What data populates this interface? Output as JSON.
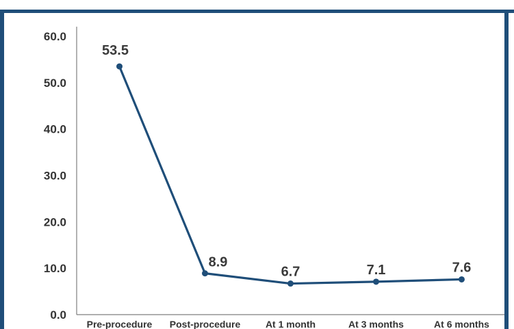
{
  "chart_data": {
    "type": "line",
    "categories": [
      "Pre-procedure",
      "Post-procedure",
      "At 1 month",
      "At 3 months",
      "At 6 months"
    ],
    "series": [
      {
        "values": [
          53.5,
          8.9,
          6.7,
          7.1,
          7.6
        ]
      }
    ],
    "data_labels": [
      "53.5",
      "8.9",
      "6.7",
      "7.1",
      "7.6"
    ],
    "yticks": [
      "0.0",
      "10.0",
      "20.0",
      "30.0",
      "40.0",
      "50.0",
      "60.0"
    ],
    "ylim": [
      0,
      60
    ],
    "grid": false,
    "legend": "none",
    "colors": {
      "line": "#1f4e79",
      "frame": "#1f4e79",
      "text": "#333333"
    }
  }
}
